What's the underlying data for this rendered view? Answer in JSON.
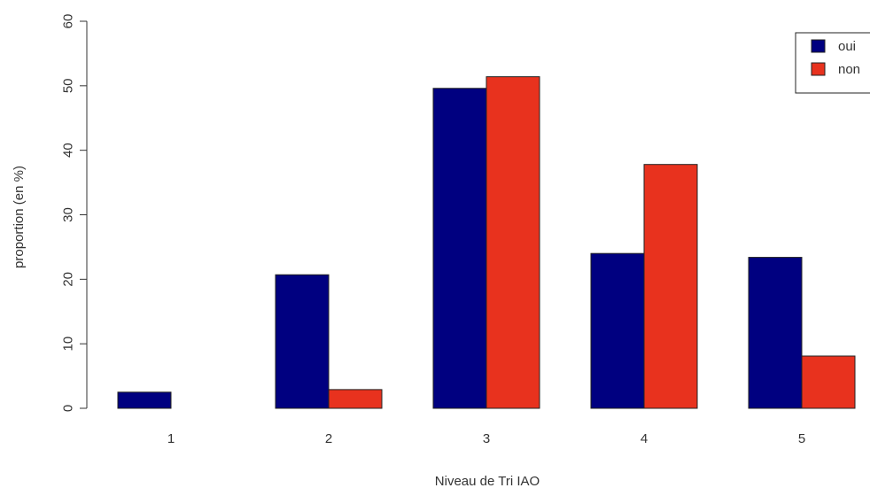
{
  "chart_data": {
    "type": "bar",
    "title": "",
    "xlabel": "Niveau de Tri IAO",
    "ylabel": "proportion (en %)",
    "categories": [
      "1",
      "2",
      "3",
      "4",
      "5"
    ],
    "ylim": [
      0,
      60
    ],
    "yticks": [
      0,
      10,
      20,
      30,
      40,
      50,
      60
    ],
    "grid": false,
    "legend_position": "top-right",
    "series": [
      {
        "name": "oui",
        "color": "#000080",
        "values": [
          2.5,
          20.7,
          49.6,
          24.0,
          23.4
        ]
      },
      {
        "name": "non",
        "color": "#e8321e",
        "values": [
          0,
          2.9,
          51.4,
          37.8,
          8.1
        ]
      }
    ]
  }
}
